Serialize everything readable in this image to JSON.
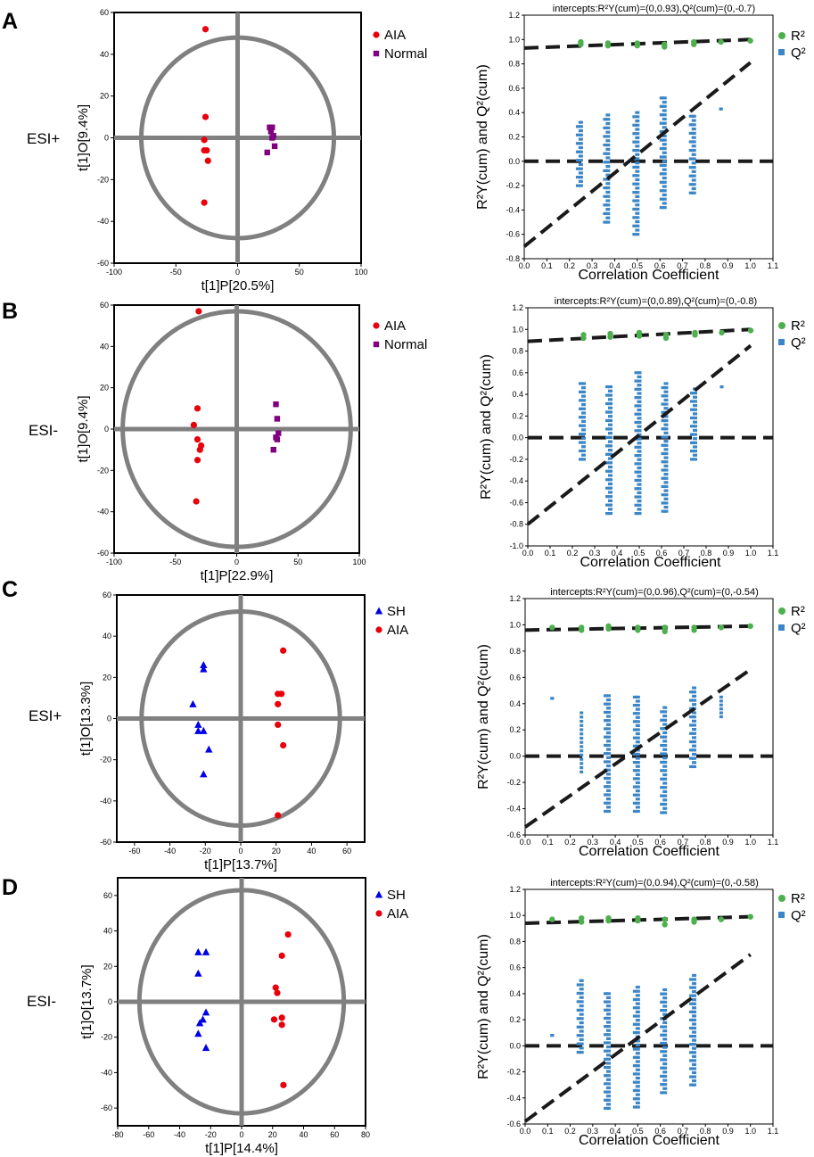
{
  "colors": {
    "aia": "#e8000b",
    "normal": "#800080",
    "sh": "#0000e6",
    "r2": "#4cb04c",
    "q2": "#3a86c8",
    "line": "#1a1a1a",
    "circle": "#808080"
  },
  "chart_data": [
    {
      "type": "scatter",
      "panel": "A",
      "mode": "ESI+",
      "xlabel": "t[1]P[20.5%]",
      "ylabel": "t[1]O[9.4%]",
      "xlim": [
        -100,
        100
      ],
      "ylim": [
        -60,
        60
      ],
      "xticks": [
        -100,
        -50,
        0,
        50,
        100
      ],
      "yticks": [
        -60,
        -40,
        -20,
        0,
        20,
        40,
        60
      ],
      "ellipse": {
        "rx": 78,
        "ry": 48
      },
      "series": [
        {
          "name": "AIA",
          "marker": "circle",
          "color": "#e8000b",
          "points": [
            [
              -26,
              52
            ],
            [
              -26,
              10
            ],
            [
              -27,
              -1
            ],
            [
              -27,
              -6
            ],
            [
              -25,
              -6
            ],
            [
              -24,
              -11
            ],
            [
              -27,
              -31
            ]
          ]
        },
        {
          "name": "Normal",
          "marker": "square",
          "color": "#800080",
          "points": [
            [
              26,
              5
            ],
            [
              28,
              5
            ],
            [
              27,
              3
            ],
            [
              29,
              1
            ],
            [
              30,
              -4
            ],
            [
              24,
              -7
            ],
            [
              28,
              0
            ]
          ]
        }
      ]
    },
    {
      "type": "scatter",
      "panel": "A",
      "mode": "ESI+",
      "title": "intercepts:R²Y(cum)=(0,0.93),Q²(cum)=(0,-0.7)",
      "xlabel": "Correlation Coefficient",
      "ylabel": "R²Y(cum) and Q²(cum)",
      "xlim": [
        0,
        1.1
      ],
      "ylim": [
        -0.8,
        1.2
      ],
      "xticks": [
        0,
        0.1,
        0.2,
        0.3,
        0.4,
        0.5,
        0.6,
        0.7,
        0.8,
        0.9,
        1.0,
        1.1
      ],
      "yticks": [
        -0.8,
        -0.6,
        -0.4,
        -0.2,
        0,
        0.2,
        0.4,
        0.6,
        0.8,
        1.0,
        1.2
      ],
      "legend": [
        "R²",
        "Q²"
      ],
      "r2_intercept": 0.93,
      "q2_intercept": -0.7,
      "r2_end": 1.0,
      "q2_end": 0.81,
      "r2_points": [
        [
          0.25,
          0.96
        ],
        [
          0.25,
          0.98
        ],
        [
          0.37,
          0.95
        ],
        [
          0.37,
          0.97
        ],
        [
          0.5,
          0.95
        ],
        [
          0.5,
          0.97
        ],
        [
          0.62,
          0.94
        ],
        [
          0.62,
          0.96
        ],
        [
          0.75,
          0.96
        ],
        [
          0.75,
          0.98
        ],
        [
          0.87,
          0.98
        ],
        [
          1.0,
          0.99
        ]
      ],
      "q2_columns": [
        {
          "x": 0.25,
          "min": -0.2,
          "max": 0.32
        },
        {
          "x": 0.37,
          "min": -0.5,
          "max": 0.38
        },
        {
          "x": 0.5,
          "min": -0.6,
          "max": 0.4
        },
        {
          "x": 0.62,
          "min": -0.38,
          "max": 0.52
        },
        {
          "x": 0.75,
          "min": -0.26,
          "max": 0.37
        },
        {
          "x": 0.87,
          "min": 0.43,
          "max": 0.43
        }
      ]
    },
    {
      "type": "scatter",
      "panel": "B",
      "mode": "ESI-",
      "xlabel": "t[1]P[22.9%]",
      "ylabel": "t[1]O[9.4%]",
      "xlim": [
        -100,
        100
      ],
      "ylim": [
        -60,
        60
      ],
      "xticks": [
        -100,
        -50,
        0,
        50,
        100
      ],
      "yticks": [
        -60,
        -40,
        -20,
        0,
        20,
        40,
        60
      ],
      "ellipse": {
        "rx": 93,
        "ry": 57
      },
      "series": [
        {
          "name": "AIA",
          "marker": "circle",
          "color": "#e8000b",
          "points": [
            [
              -31,
              57
            ],
            [
              -32,
              10
            ],
            [
              -35,
              2
            ],
            [
              -32,
              -5
            ],
            [
              -29,
              -8
            ],
            [
              -30,
              -10
            ],
            [
              -32,
              -15
            ],
            [
              -33,
              -35
            ]
          ]
        },
        {
          "name": "Normal",
          "marker": "square",
          "color": "#800080",
          "points": [
            [
              32,
              12
            ],
            [
              33,
              5
            ],
            [
              34,
              -2
            ],
            [
              32,
              -4
            ],
            [
              33,
              -5
            ],
            [
              30,
              -10
            ]
          ]
        }
      ]
    },
    {
      "type": "scatter",
      "panel": "B",
      "mode": "ESI-",
      "title": "intercepts:R²Y(cum)=(0,0.89),Q²(cum)=(0,-0.8)",
      "xlabel": "Correlation Coefficient",
      "ylabel": "R²Y(cum) and Q²(cum)",
      "xlim": [
        0,
        1.1
      ],
      "ylim": [
        -1.0,
        1.2
      ],
      "xticks": [
        0,
        0.1,
        0.2,
        0.3,
        0.4,
        0.5,
        0.6,
        0.7,
        0.8,
        0.9,
        1.0,
        1.1
      ],
      "yticks": [
        -1.0,
        -0.8,
        -0.6,
        -0.4,
        -0.2,
        0,
        0.2,
        0.4,
        0.6,
        0.8,
        1.0,
        1.2
      ],
      "legend": [
        "R²",
        "Q²"
      ],
      "r2_intercept": 0.89,
      "q2_intercept": -0.8,
      "r2_end": 1.0,
      "q2_end": 0.85,
      "r2_points": [
        [
          0.25,
          0.92
        ],
        [
          0.25,
          0.95
        ],
        [
          0.37,
          0.93
        ],
        [
          0.37,
          0.96
        ],
        [
          0.5,
          0.94
        ],
        [
          0.5,
          0.97
        ],
        [
          0.62,
          0.92
        ],
        [
          0.62,
          0.95
        ],
        [
          0.75,
          0.95
        ],
        [
          0.75,
          0.97
        ],
        [
          0.87,
          0.97
        ],
        [
          1.0,
          0.99
        ]
      ],
      "q2_columns": [
        {
          "x": 0.25,
          "min": -0.2,
          "max": 0.5
        },
        {
          "x": 0.37,
          "min": -0.7,
          "max": 0.47
        },
        {
          "x": 0.5,
          "min": -0.7,
          "max": 0.6
        },
        {
          "x": 0.62,
          "min": -0.68,
          "max": 0.5
        },
        {
          "x": 0.75,
          "min": -0.2,
          "max": 0.45
        },
        {
          "x": 0.87,
          "min": 0.47,
          "max": 0.47
        }
      ]
    },
    {
      "type": "scatter",
      "panel": "C",
      "mode": "ESI+",
      "xlabel": "t[1]P[13.7%]",
      "ylabel": "t[1]O[13.3%]",
      "xlim": [
        -70,
        70
      ],
      "ylim": [
        -60,
        60
      ],
      "xticks": [
        -60,
        -40,
        -20,
        0,
        20,
        40,
        60
      ],
      "yticks": [
        -60,
        -40,
        -20,
        0,
        20,
        40,
        60
      ],
      "ellipse": {
        "rx": 56,
        "ry": 52
      },
      "series": [
        {
          "name": "SH",
          "marker": "triangle",
          "color": "#0000e6",
          "points": [
            [
              -21,
              26
            ],
            [
              -21,
              24
            ],
            [
              -27,
              7
            ],
            [
              -24,
              -3
            ],
            [
              -24,
              -6
            ],
            [
              -21,
              -6
            ],
            [
              -18,
              -15
            ],
            [
              -21,
              -27
            ]
          ]
        },
        {
          "name": "AIA",
          "marker": "circle",
          "color": "#e8000b",
          "points": [
            [
              24,
              33
            ],
            [
              23,
              12
            ],
            [
              21,
              12
            ],
            [
              21,
              7
            ],
            [
              21,
              -3
            ],
            [
              24,
              -13
            ],
            [
              21,
              -47
            ]
          ]
        }
      ]
    },
    {
      "type": "scatter",
      "panel": "C",
      "mode": "ESI+",
      "title": "intercepts:R²Y(cum)=(0,0.96),Q²(cum)=(0,-0.54)",
      "xlabel": "Correlation Coefficient",
      "ylabel": "R²Y(cum) and Q²(cum)",
      "xlim": [
        0,
        1.1
      ],
      "ylim": [
        -0.6,
        1.2
      ],
      "xticks": [
        0,
        0.1,
        0.2,
        0.3,
        0.4,
        0.5,
        0.6,
        0.7,
        0.8,
        0.9,
        1.0,
        1.1
      ],
      "yticks": [
        -0.6,
        -0.4,
        -0.2,
        0,
        0.2,
        0.4,
        0.6,
        0.8,
        1.0,
        1.2
      ],
      "legend": [
        "R²",
        "Q²"
      ],
      "r2_intercept": 0.96,
      "q2_intercept": -0.54,
      "r2_end": 0.99,
      "q2_end": 0.66,
      "r2_points": [
        [
          0.12,
          0.98
        ],
        [
          0.25,
          0.96
        ],
        [
          0.25,
          0.98
        ],
        [
          0.37,
          0.97
        ],
        [
          0.37,
          0.99
        ],
        [
          0.5,
          0.96
        ],
        [
          0.5,
          0.98
        ],
        [
          0.62,
          0.95
        ],
        [
          0.62,
          0.98
        ],
        [
          0.75,
          0.96
        ],
        [
          0.75,
          0.98
        ],
        [
          0.87,
          0.98
        ],
        [
          1.0,
          0.99
        ]
      ],
      "q2_columns": [
        {
          "x": 0.12,
          "min": 0.44,
          "max": 0.44
        },
        {
          "x": 0.25,
          "min": -0.12,
          "max": 0.33
        },
        {
          "x": 0.37,
          "min": -0.42,
          "max": 0.46
        },
        {
          "x": 0.5,
          "min": -0.42,
          "max": 0.45
        },
        {
          "x": 0.62,
          "min": -0.43,
          "max": 0.37
        },
        {
          "x": 0.75,
          "min": -0.08,
          "max": 0.52
        },
        {
          "x": 0.87,
          "min": 0.3,
          "max": 0.45
        }
      ]
    },
    {
      "type": "scatter",
      "panel": "D",
      "mode": "ESI-",
      "xlabel": "t[1]P[14.4%]",
      "ylabel": "t[1]O[13.7%]",
      "xlim": [
        -80,
        80
      ],
      "ylim": [
        -70,
        70
      ],
      "xticks": [
        -80,
        -60,
        -40,
        -20,
        0,
        20,
        40,
        60,
        80
      ],
      "yticks": [
        -60,
        -40,
        -20,
        0,
        20,
        40,
        60
      ],
      "ellipse": {
        "rx": 66,
        "ry": 63
      },
      "series": [
        {
          "name": "SH",
          "marker": "triangle",
          "color": "#0000e6",
          "points": [
            [
              -28,
              28
            ],
            [
              -23,
              28
            ],
            [
              -28,
              16
            ],
            [
              -23,
              -6
            ],
            [
              -25,
              -10
            ],
            [
              -27,
              -12
            ],
            [
              -28,
              -18
            ],
            [
              -23,
              -26
            ]
          ]
        },
        {
          "name": "AIA",
          "marker": "circle",
          "color": "#e8000b",
          "points": [
            [
              30,
              38
            ],
            [
              26,
              26
            ],
            [
              22,
              8
            ],
            [
              23,
              5
            ],
            [
              21,
              -10
            ],
            [
              26,
              -9
            ],
            [
              26,
              -13
            ],
            [
              27,
              -47
            ]
          ]
        }
      ]
    },
    {
      "type": "scatter",
      "panel": "D",
      "mode": "ESI-",
      "title": "intercepts:R²Y(cum)=(0,0.94),Q²(cum)=(0,-0.58)",
      "xlabel": "Correlation Coefficient",
      "ylabel": "R²Y(cum) and Q²(cum)",
      "xlim": [
        0,
        1.1
      ],
      "ylim": [
        -0.6,
        1.2
      ],
      "xticks": [
        0,
        0.1,
        0.2,
        0.3,
        0.4,
        0.5,
        0.6,
        0.7,
        0.8,
        0.9,
        1.0,
        1.1
      ],
      "yticks": [
        -0.6,
        -0.4,
        -0.2,
        0,
        0.2,
        0.4,
        0.6,
        0.8,
        1.0,
        1.2
      ],
      "legend": [
        "R²",
        "Q²"
      ],
      "r2_intercept": 0.94,
      "q2_intercept": -0.58,
      "r2_end": 0.99,
      "q2_end": 0.7,
      "r2_points": [
        [
          0.12,
          0.97
        ],
        [
          0.25,
          0.95
        ],
        [
          0.25,
          0.98
        ],
        [
          0.37,
          0.96
        ],
        [
          0.37,
          0.98
        ],
        [
          0.5,
          0.96
        ],
        [
          0.5,
          0.98
        ],
        [
          0.62,
          0.93
        ],
        [
          0.62,
          0.97
        ],
        [
          0.75,
          0.95
        ],
        [
          0.75,
          0.97
        ],
        [
          0.87,
          0.97
        ],
        [
          1.0,
          0.99
        ]
      ],
      "q2_columns": [
        {
          "x": 0.12,
          "min": 0.08,
          "max": 0.08
        },
        {
          "x": 0.25,
          "min": -0.05,
          "max": 0.5
        },
        {
          "x": 0.37,
          "min": -0.48,
          "max": 0.4
        },
        {
          "x": 0.5,
          "min": -0.47,
          "max": 0.45
        },
        {
          "x": 0.62,
          "min": -0.36,
          "max": 0.43
        },
        {
          "x": 0.75,
          "min": -0.3,
          "max": 0.54
        }
      ]
    }
  ]
}
